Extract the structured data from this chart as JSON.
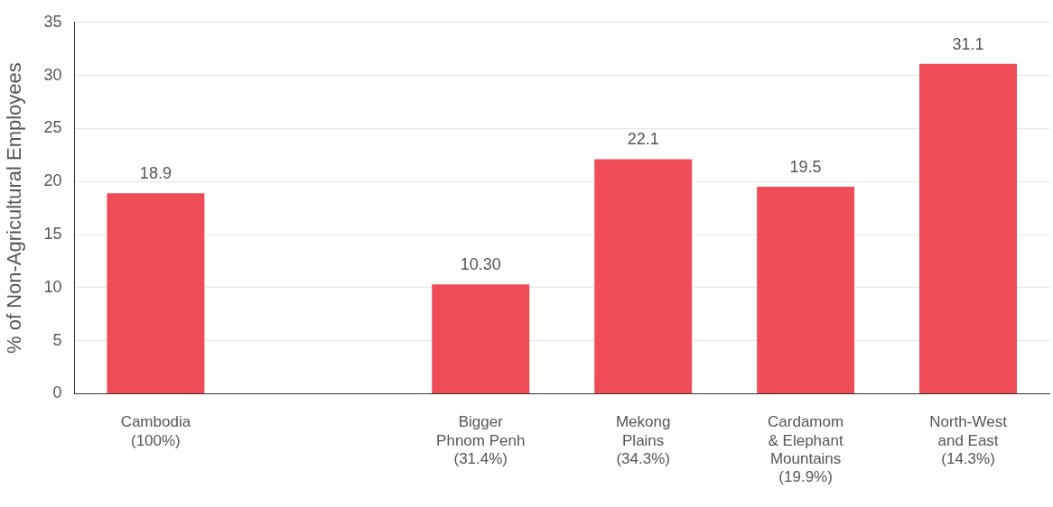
{
  "chart_data": {
    "type": "bar",
    "ylabel": "% of Non-Agricultural Employees",
    "categories": [
      "Cambodia\n(100%)",
      null,
      "Bigger\nPhnom Penh\n(31.4%)",
      "Mekong\nPlains\n(34.3%)",
      "Cardamom\n& Elephant\nMountains\n(19.9%)",
      "North-West\nand East\n(14.3%)"
    ],
    "values": [
      18.9,
      null,
      10.3,
      22.1,
      19.5,
      31.1
    ],
    "value_labels": [
      "18.9",
      null,
      "10.30",
      "22.1",
      "19.5",
      "31.1"
    ],
    "color": "#ef4c58",
    "ylim": [
      0,
      35
    ],
    "yticks": [
      0,
      5,
      10,
      15,
      20,
      25,
      30,
      35
    ],
    "grid": "y",
    "legend": false
  }
}
